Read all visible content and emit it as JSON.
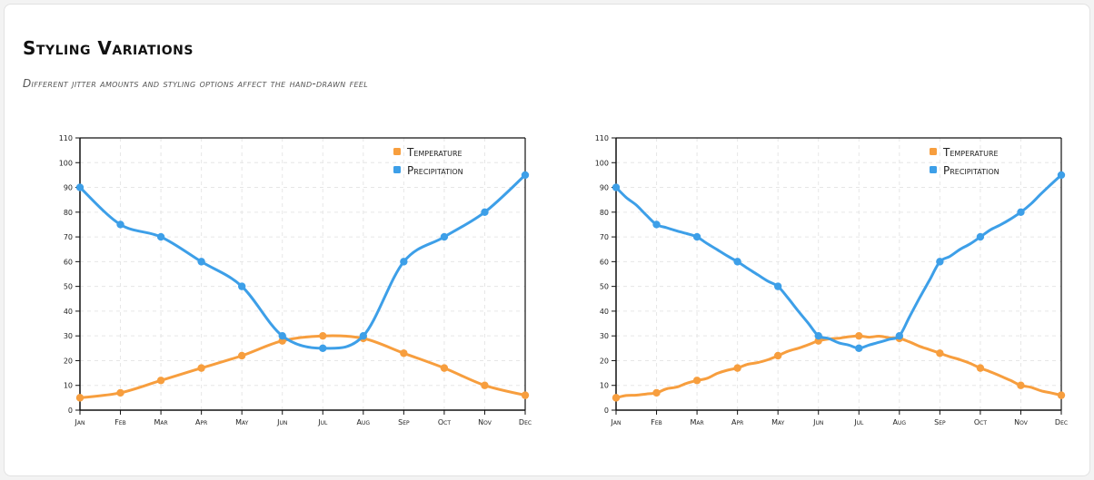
{
  "header": {
    "title": "Styling Variations",
    "subtitle": "Different jitter amounts and styling options affect the hand-drawn feel"
  },
  "colors": {
    "temperature": "#f79e3e",
    "precipitation": "#3d9fe8",
    "grid": "#e6e6e6",
    "axis": "#111111"
  },
  "chart_data": [
    {
      "type": "line",
      "categories": [
        "Jan",
        "Feb",
        "Mar",
        "Apr",
        "May",
        "Jun",
        "Jul",
        "Aug",
        "Sep",
        "Oct",
        "Nov",
        "Dec"
      ],
      "series": [
        {
          "name": "Temperature",
          "values": [
            5,
            7,
            12,
            17,
            22,
            28,
            30,
            29,
            23,
            17,
            10,
            6
          ]
        },
        {
          "name": "Precipitation",
          "values": [
            90,
            75,
            70,
            60,
            50,
            30,
            25,
            30,
            60,
            70,
            80,
            95
          ]
        }
      ],
      "ylim": [
        0,
        110
      ],
      "yticks": [
        0,
        10,
        20,
        30,
        40,
        50,
        60,
        70,
        80,
        90,
        100,
        110
      ],
      "grid": true,
      "legend": "top-right",
      "jitter": "smooth"
    },
    {
      "type": "line",
      "categories": [
        "Jan",
        "Feb",
        "Mar",
        "Apr",
        "May",
        "Jun",
        "Jul",
        "Aug",
        "Sep",
        "Oct",
        "Nov",
        "Dec"
      ],
      "series": [
        {
          "name": "Temperature",
          "values": [
            5,
            7,
            12,
            17,
            22,
            28,
            30,
            29,
            23,
            17,
            10,
            6
          ]
        },
        {
          "name": "Precipitation",
          "values": [
            90,
            75,
            70,
            60,
            50,
            30,
            25,
            30,
            60,
            70,
            80,
            95
          ]
        }
      ],
      "ylim": [
        0,
        110
      ],
      "yticks": [
        0,
        10,
        20,
        30,
        40,
        50,
        60,
        70,
        80,
        90,
        100,
        110
      ],
      "grid": true,
      "legend": "top-right",
      "jitter": "rough"
    }
  ]
}
